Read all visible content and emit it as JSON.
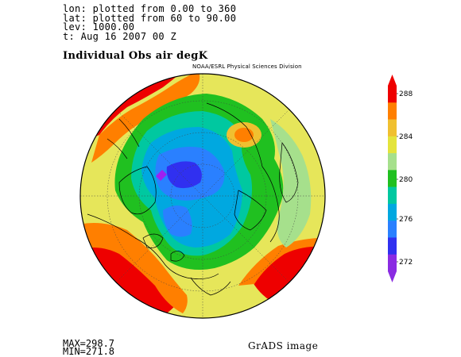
{
  "header": {
    "lines": [
      "lon: plotted from 0.00 to 360",
      "lat: plotted from 60 to 90.00",
      "lev: 1000.00",
      "t: Aug 16 2007 00 Z"
    ],
    "title": "Individual Obs air degK",
    "credit": "NOAA/ESRL Physical Sciences Division"
  },
  "footer": {
    "max": "MAX=298.7",
    "min": "MIN=271.8",
    "image_label": "GrADS image"
  },
  "colorbar": {
    "labels": [
      "288",
      "284",
      "280",
      "276",
      "272"
    ],
    "colors": [
      "#ee0000",
      "#ff7f00",
      "#f0c030",
      "#e4e43c",
      "#a6e08c",
      "#20c020",
      "#00c8a0",
      "#00a8e0",
      "#2a80ff",
      "#3030f0",
      "#8a2be2"
    ]
  },
  "map": {
    "projection": "north polar stereographic",
    "palette": {
      "red": "#ee0000",
      "orange": "#ff7f00",
      "gold": "#f0c030",
      "yellow": "#e6e65a",
      "lightgreen": "#a6e08c",
      "green": "#20c020",
      "teal": "#00c8a0",
      "cyan": "#00a8e0",
      "blue": "#2a80ff",
      "deepblue": "#3030f0",
      "purple": "#a020f0"
    }
  }
}
